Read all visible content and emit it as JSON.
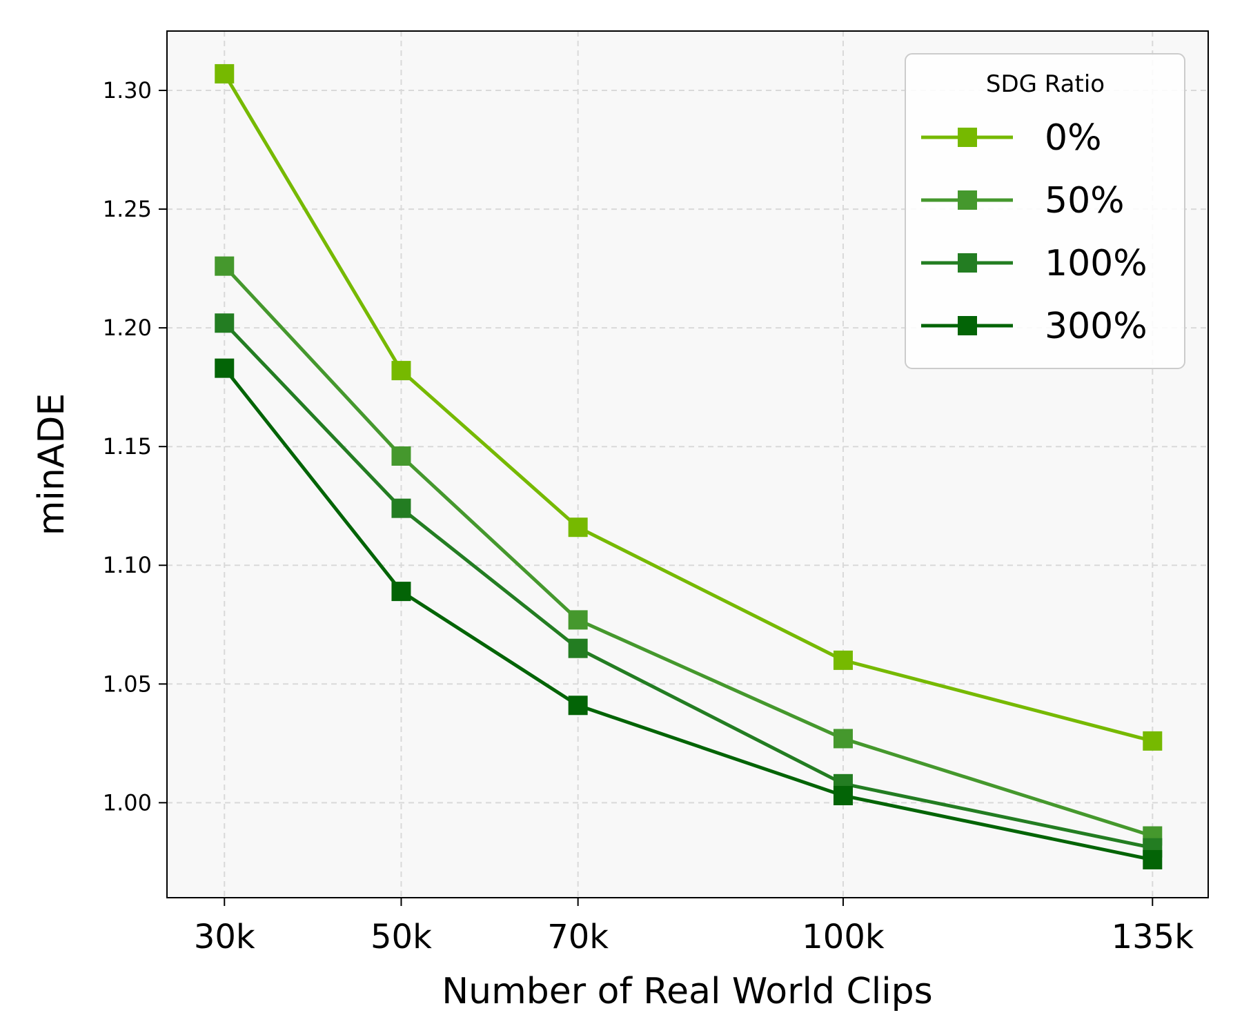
{
  "chart_data": {
    "type": "line",
    "x_categories": [
      "30k",
      "50k",
      "70k",
      "100k",
      "135k"
    ],
    "x": [
      30,
      50,
      70,
      100,
      135
    ],
    "xlabel": "Number of Real World Clips",
    "ylabel": "minADE",
    "ylim": [
      0.96,
      1.325
    ],
    "yticks": [
      1.0,
      1.05,
      1.1,
      1.15,
      1.2,
      1.25,
      1.3
    ],
    "ytick_labels": [
      "1.00",
      "1.05",
      "1.10",
      "1.15",
      "1.20",
      "1.25",
      "1.30"
    ],
    "grid": true,
    "marker": "square",
    "legend": {
      "title": "SDG Ratio",
      "placement": "top-right"
    },
    "series": [
      {
        "name": "0%",
        "color": "#76b900",
        "values": [
          1.307,
          1.182,
          1.116,
          1.06,
          1.026
        ]
      },
      {
        "name": "50%",
        "color": "#45982d",
        "values": [
          1.226,
          1.146,
          1.077,
          1.027,
          0.986
        ]
      },
      {
        "name": "100%",
        "color": "#237d22",
        "values": [
          1.202,
          1.124,
          1.065,
          1.008,
          0.981
        ]
      },
      {
        "name": "300%",
        "color": "#036406",
        "values": [
          1.183,
          1.089,
          1.041,
          1.003,
          0.976
        ]
      }
    ]
  }
}
